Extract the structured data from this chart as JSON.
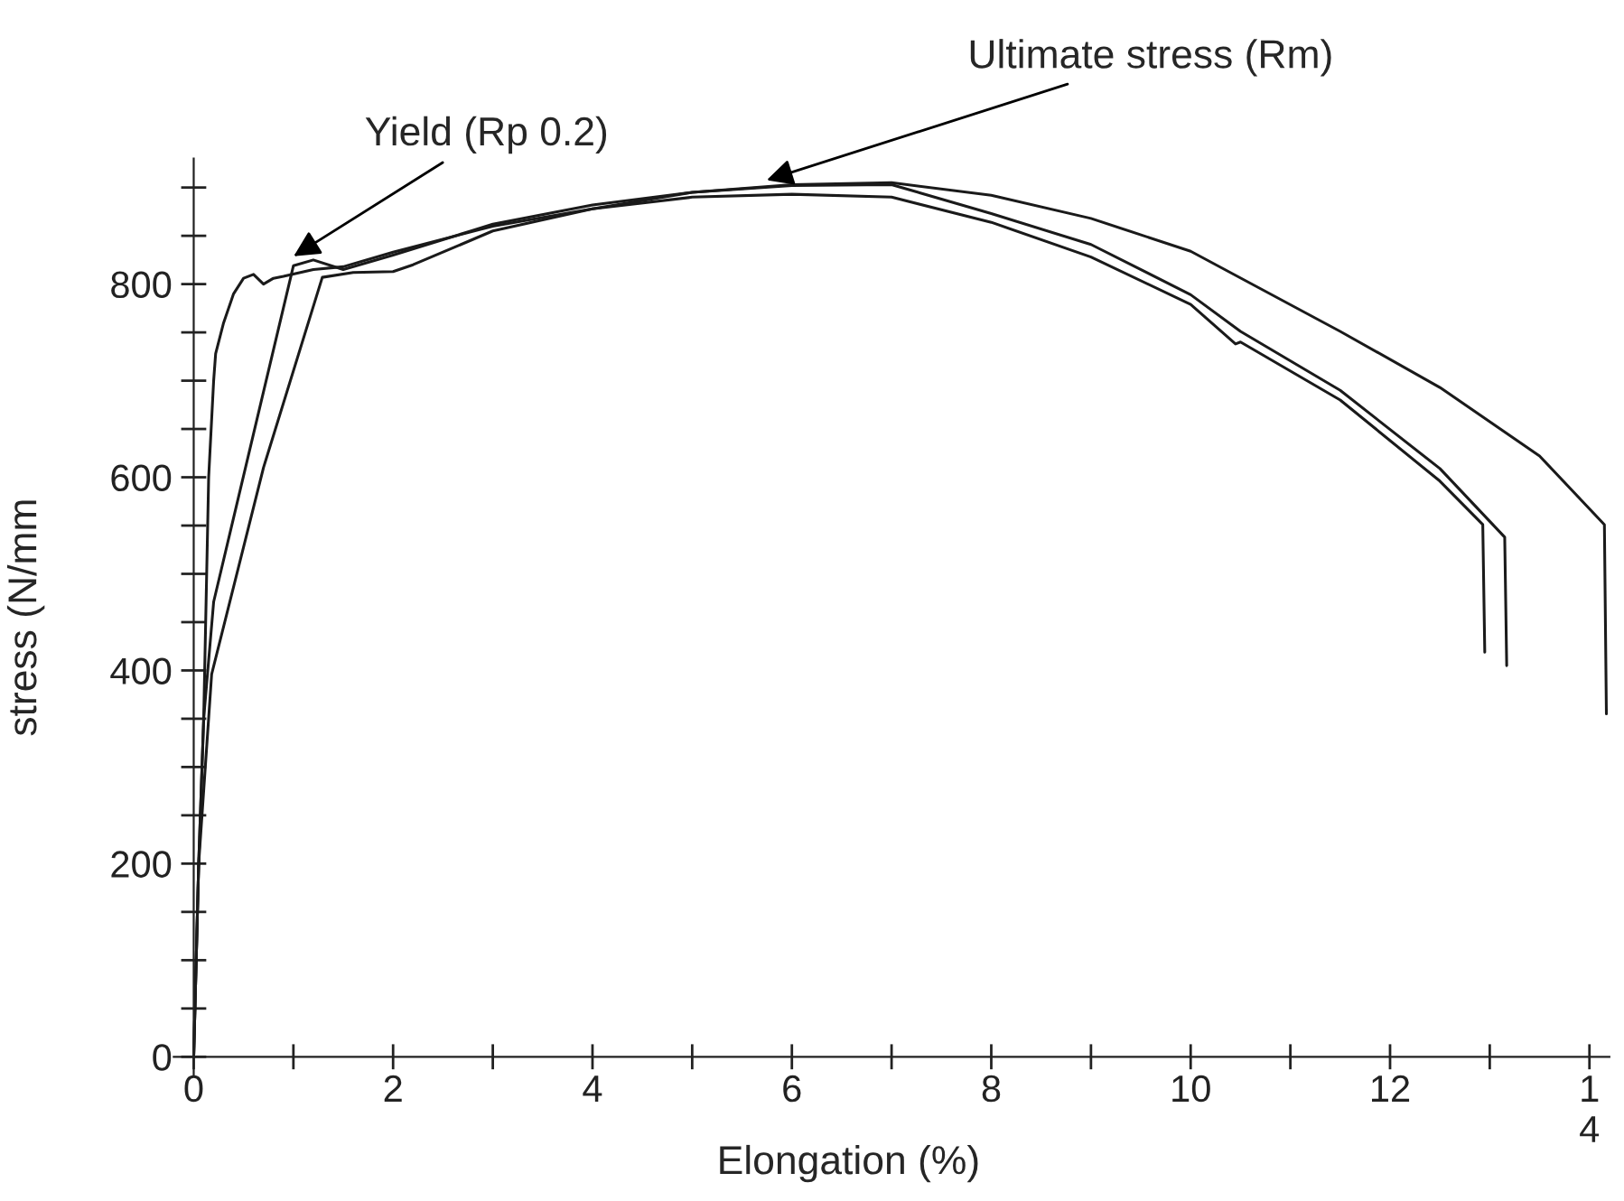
{
  "chart_data": {
    "type": "line",
    "xlabel": "Elongation (%)",
    "ylabel": "stress (N/mm",
    "xlim": [
      -0.2,
      14.2
    ],
    "ylim": [
      -20,
      930
    ],
    "xticks": [
      0,
      {
        "value": 1,
        "label": null
      },
      2,
      {
        "value": 3,
        "label": null
      },
      4,
      {
        "value": 5,
        "label": null
      },
      6,
      {
        "value": 7,
        "label": null
      },
      8,
      {
        "value": 9,
        "label": null
      },
      10,
      {
        "value": 11,
        "label": null
      },
      12,
      {
        "value": 13,
        "label": null
      },
      {
        "value": 14,
        "label": "1\n4"
      }
    ],
    "yticks": [
      0,
      {
        "value": 50,
        "label": null
      },
      {
        "value": 100,
        "label": null
      },
      {
        "value": 150,
        "label": null
      },
      200,
      {
        "value": 250,
        "label": null
      },
      {
        "value": 300,
        "label": null
      },
      {
        "value": 350,
        "label": null
      },
      400,
      {
        "value": 450,
        "label": null
      },
      {
        "value": 500,
        "label": null
      },
      {
        "value": 550,
        "label": null
      },
      600,
      {
        "value": 650,
        "label": null
      },
      {
        "value": 700,
        "label": null
      },
      {
        "value": 750,
        "label": null
      },
      800,
      {
        "value": 850,
        "label": null
      },
      {
        "value": 900,
        "label": null
      }
    ],
    "grid": false,
    "marker": "none",
    "line_style": "solid",
    "series": [
      {
        "color": "#1a1a1a",
        "x": [
          0,
          0.05,
          0.1,
          0.12,
          0.15,
          0.2,
          0.22,
          0.3,
          0.4,
          0.5,
          0.6,
          0.7,
          0.8,
          0.9,
          1.2,
          1.5,
          2,
          3,
          4,
          5,
          6,
          7,
          8,
          9,
          10,
          10.45,
          10.5,
          11.5,
          12.5,
          12.93,
          12.95
        ],
        "values": [
          0,
          200,
          350,
          450,
          600,
          700,
          728,
          760,
          790,
          806,
          810,
          800,
          806,
          808,
          815,
          818,
          833,
          860,
          878,
          890,
          893,
          890,
          864,
          828,
          779,
          738,
          740,
          680,
          596,
          551,
          419
        ]
      },
      {
        "color": "#1a1a1a",
        "x": [
          0,
          0.05,
          0.1,
          0.2,
          0.6,
          1.0,
          1.2,
          1.5,
          2,
          3,
          4,
          5,
          6,
          7,
          8,
          9,
          10,
          10.5,
          11.5,
          12.5,
          13.15,
          13.17
        ],
        "values": [
          0,
          200,
          350,
          471,
          645,
          819,
          825,
          815,
          830,
          862,
          882,
          895,
          902,
          903,
          873,
          841,
          789,
          751,
          690,
          609,
          538,
          405
        ]
      },
      {
        "color": "#1a1a1a",
        "x": [
          0,
          0.05,
          0.18,
          0.7,
          1.29,
          1.6,
          2.0,
          2.2,
          3,
          4,
          5,
          6,
          7,
          8,
          9,
          10,
          11.5,
          12.5,
          13.5,
          14.15,
          14.17
        ],
        "values": [
          0,
          200,
          396,
          610,
          807,
          812,
          813,
          820,
          855,
          878,
          895,
          903,
          905,
          892,
          868,
          834,
          751,
          693,
          622,
          551,
          355
        ]
      }
    ],
    "annotations": [
      {
        "text": "Yield (Rp 0.2)",
        "x": 0.96,
        "y": 826
      },
      {
        "text": "Ultimate stress (Rm)",
        "x": 5.7,
        "y": 906
      }
    ]
  }
}
